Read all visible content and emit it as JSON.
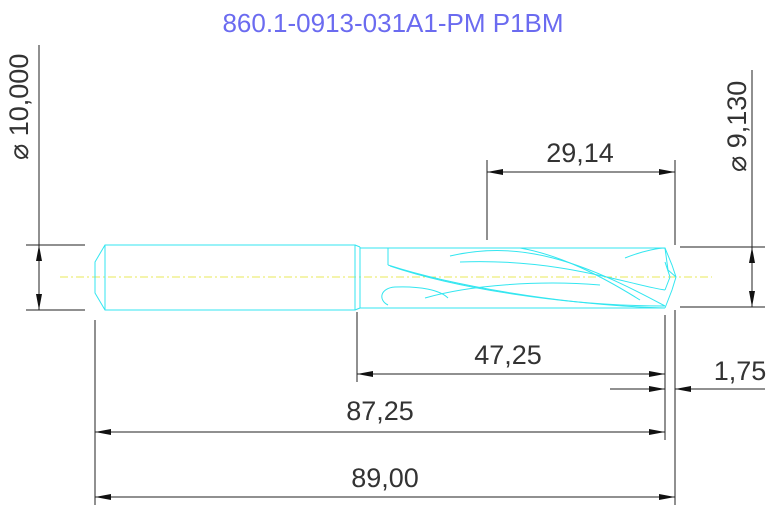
{
  "title": "860.1-0913-031A1-PM P1BM",
  "dimensions": {
    "shank_diameter": "⌀ 10,000",
    "body_diameter": "⌀ 9,130",
    "flute_length": "29,14",
    "body_length": "47,25",
    "tip_length": "1,75",
    "length_to_corner": "87,25",
    "overall_length": "89,00"
  },
  "colors": {
    "title": "#6b6bf0",
    "tool_outline": "#33e6f0",
    "centerline": "#e8e85a",
    "dimension_lines": "#222222"
  }
}
